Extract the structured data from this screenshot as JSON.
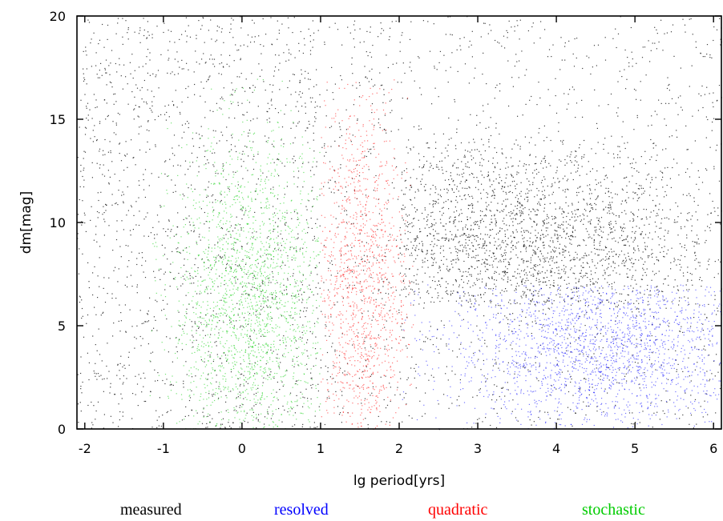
{
  "chart_data": {
    "type": "scatter",
    "title": "",
    "xlabel": "lg period[yrs]",
    "ylabel": "dm[mag]",
    "xlim": [
      -2.1,
      6.1
    ],
    "ylim": [
      0,
      20
    ],
    "xticks": [
      -2,
      -1,
      0,
      1,
      2,
      3,
      4,
      5,
      6
    ],
    "yticks": [
      0,
      5,
      10,
      15,
      20
    ],
    "xtick_labels": [
      "-2",
      "-1",
      "0",
      "1",
      "2",
      "3",
      "4",
      "5",
      "6"
    ],
    "ytick_labels": [
      "0",
      "5",
      "10",
      "15",
      "20"
    ],
    "grid": false,
    "legend_placement": "bottom",
    "series": [
      {
        "name": "measured",
        "color": "#000000",
        "regions": [
          {
            "x": [
              -2.1,
              1.0
            ],
            "y": [
              0,
              20
            ],
            "count": 1600
          },
          {
            "x": [
              2.0,
              6.1
            ],
            "y": [
              6,
              14
            ],
            "count": 2600,
            "center": [
              3.5,
              9
            ],
            "spread": [
              1.3,
              2.5
            ]
          },
          {
            "x": [
              1.0,
              6.1
            ],
            "y": [
              0,
              20
            ],
            "count": 1500
          }
        ]
      },
      {
        "name": "resolved",
        "color": "#0000ff",
        "regions": [
          {
            "x": [
              2.0,
              6.1
            ],
            "y": [
              0,
              7
            ],
            "count": 2200,
            "center": [
              4.6,
              4
            ],
            "spread": [
              1.0,
              2.0
            ]
          }
        ]
      },
      {
        "name": "quadratic",
        "color": "#ff0000",
        "regions": [
          {
            "x": [
              1.0,
              2.2
            ],
            "y": [
              0,
              17
            ],
            "count": 1400,
            "center": [
              1.5,
              7
            ],
            "spread": [
              0.3,
              4.5
            ]
          }
        ]
      },
      {
        "name": "stochastic",
        "color": "#00cc00",
        "regions": [
          {
            "x": [
              -1.2,
              1.0
            ],
            "y": [
              0,
              17
            ],
            "count": 2200,
            "center": [
              0.1,
              6
            ],
            "spread": [
              0.5,
              4.0
            ]
          }
        ]
      }
    ]
  }
}
